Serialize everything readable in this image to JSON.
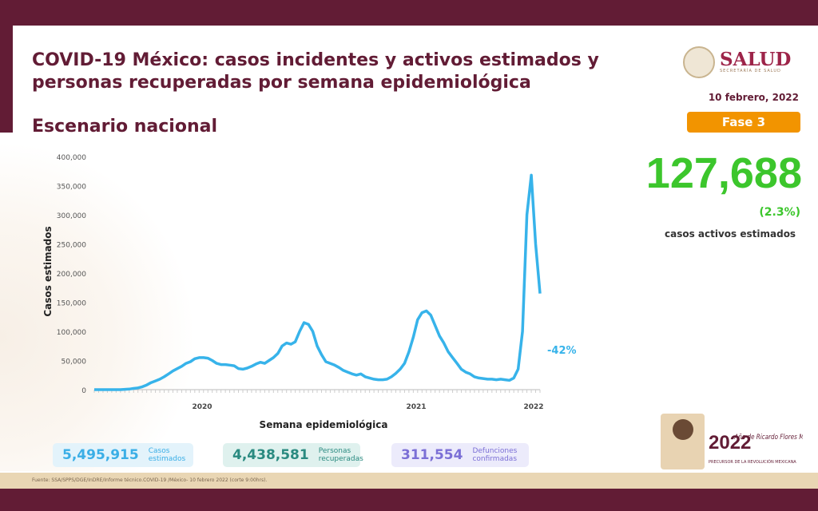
{
  "header": {
    "title": "COVID-19 México: casos incidentes y activos estimados y personas recuperadas por semana epidemiológica",
    "subtitle": "Escenario nacional",
    "logo_text": "SALUD",
    "logo_sub": "SECRETARÍA DE SALUD",
    "date": "10 febrero, 2022",
    "phase": "Fase 3"
  },
  "kpi": {
    "active": "127,688",
    "active_pct": "(2.3%)",
    "active_label": "casos activos estimados"
  },
  "cards": [
    {
      "value": "5,495,915",
      "label1": "Casos",
      "label2": "estimados",
      "color": "#3aaee6",
      "bg": "#e3f3fb"
    },
    {
      "value": "4,438,581",
      "label1": "Personas",
      "label2": "recuperadas",
      "color": "#2a8a80",
      "bg": "#dff1ee"
    },
    {
      "value": "311,554",
      "label1": "Defunciones",
      "label2": "confirmadas",
      "color": "#7b6fd6",
      "bg": "#ecebfb"
    }
  ],
  "footer": "Fuente: SSA/SPPS/DGE/InDRE/Informe técnico.COVID-19 /México- 10 febrero 2022 (corte 9:00hrs).",
  "branding": {
    "year": "2022",
    "line": "Año de Ricardo Flores Magón",
    "sub": "PRECURSOR DE LA REVOLUCIÓN MEXICANA"
  },
  "chart_data": {
    "type": "line",
    "title": "",
    "xlabel": "Semana epidemiológica",
    "ylabel": "Casos estimados",
    "ylim": [
      0,
      400000
    ],
    "yticks": [
      "0",
      "50,000",
      "100,000",
      "150,000",
      "200,000",
      "250,000",
      "300,000",
      "350,000",
      "400,000"
    ],
    "year_labels": [
      "2020",
      "2021",
      "2022"
    ],
    "annotation": "-42%",
    "color": "#37b3ea",
    "values": [
      0,
      0,
      0,
      0,
      0,
      0,
      0,
      500,
      1000,
      2000,
      3000,
      5000,
      8000,
      12000,
      15000,
      18000,
      22000,
      27000,
      32000,
      36000,
      40000,
      45000,
      48000,
      53000,
      55000,
      55000,
      54000,
      50000,
      45000,
      43000,
      43000,
      42000,
      41000,
      36000,
      35000,
      37000,
      40000,
      44000,
      47000,
      45000,
      50000,
      55000,
      62000,
      75000,
      80000,
      78000,
      82000,
      100000,
      115000,
      112000,
      100000,
      75000,
      60000,
      48000,
      45000,
      42000,
      38000,
      33000,
      30000,
      27000,
      25000,
      27000,
      22000,
      20000,
      18000,
      17000,
      17000,
      18000,
      22000,
      28000,
      35000,
      45000,
      65000,
      90000,
      120000,
      132000,
      135000,
      128000,
      110000,
      92000,
      80000,
      65000,
      55000,
      45000,
      35000,
      30000,
      27000,
      22000,
      20000,
      19000,
      18000,
      18000,
      17000,
      18000,
      17000,
      16000,
      20000,
      35000,
      100000,
      300000,
      368000,
      250000,
      165000
    ]
  }
}
